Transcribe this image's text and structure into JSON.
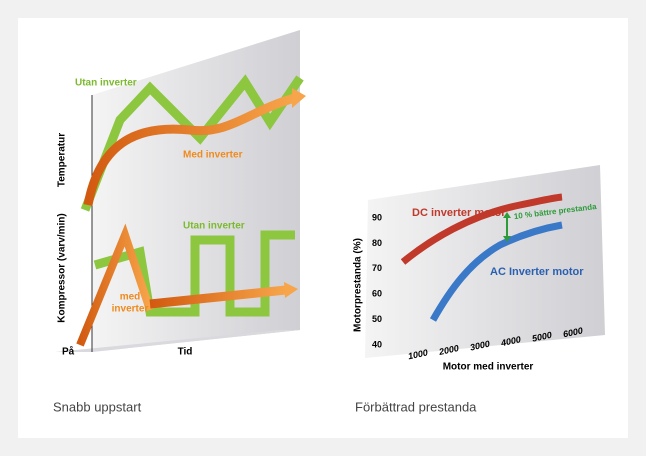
{
  "left": {
    "caption": "Snabb uppstart",
    "y_axis_upper": "Temperatur",
    "y_axis_lower": "Kompressor (varv/min)",
    "x_axis": "Tid",
    "origin": "På",
    "top_green_label": "Utan inverter",
    "top_orange_label": "Med inverter",
    "bottom_green_label": "Utan inverter",
    "bottom_orange_label": [
      "med",
      "inverter"
    ]
  },
  "right": {
    "caption": "Förbättrad prestanda",
    "y_axis": "Motorprestanda (%)",
    "x_axis": "Motor med inverter",
    "yticks": [
      90,
      80,
      70,
      60,
      50,
      40
    ],
    "xticks": [
      1000,
      2000,
      3000,
      4000,
      5000,
      6000
    ],
    "dc_label": "DC inverter motor",
    "ac_label": "AC Inverter motor",
    "gain_label": "10 % bättre prestanda"
  }
}
